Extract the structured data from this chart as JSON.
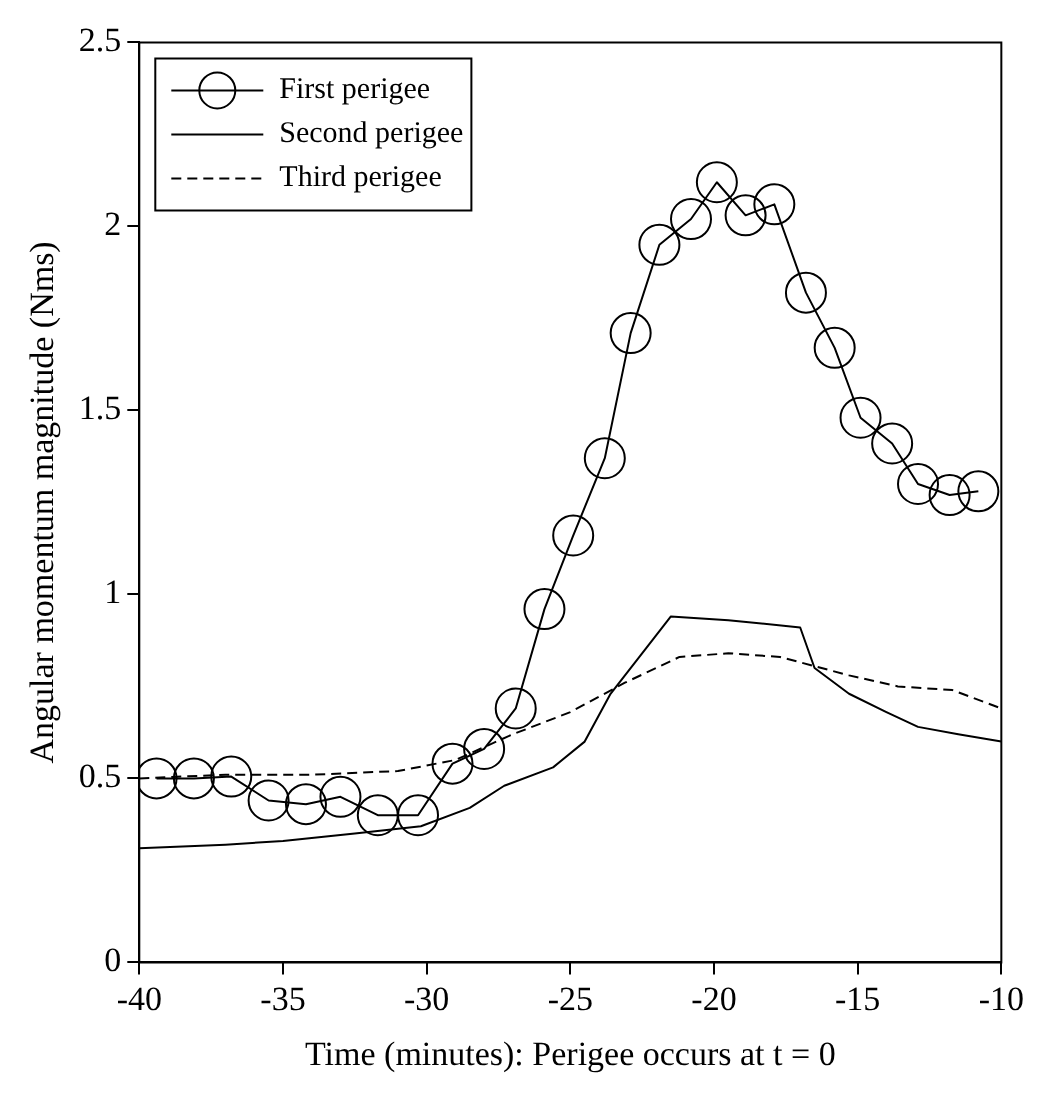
{
  "chart_data": {
    "type": "line",
    "xlabel": "Time (minutes): Perigee occurs at t = 0",
    "ylabel": "Angular momentum magnitude (Nms)",
    "xlim": [
      -40,
      -10
    ],
    "xticks": [
      -40,
      -35,
      -30,
      -25,
      -20,
      -15,
      -10
    ],
    "ylim": [
      0,
      2.5
    ],
    "yticks": [
      0,
      0.5,
      1,
      1.5,
      2,
      2.5
    ],
    "grid": false,
    "legend": "top left",
    "series": [
      {
        "name": "First perigee",
        "color": "#000000",
        "marker": "circle",
        "line_style": "solid",
        "x": [
          -39.4,
          -38.1,
          -36.8,
          -35.5,
          -34.2,
          -33.0,
          -31.7,
          -30.3,
          -29.1,
          -28.0,
          -26.9,
          -25.9,
          -24.9,
          -23.8,
          -22.9,
          -21.9,
          -20.8,
          -19.9,
          -18.9,
          -17.9,
          -16.8,
          -15.8,
          -14.9,
          -13.8,
          -12.9,
          -11.8,
          -10.8
        ],
        "values": [
          0.5,
          0.5,
          0.505,
          0.44,
          0.43,
          0.45,
          0.4,
          0.4,
          0.54,
          0.58,
          0.69,
          0.96,
          1.16,
          1.37,
          1.71,
          1.95,
          2.02,
          2.12,
          2.03,
          2.06,
          1.82,
          1.67,
          1.48,
          1.41,
          1.3,
          1.27,
          1.28
        ]
      },
      {
        "name": "Second perigee",
        "color": "#000000",
        "marker": "none",
        "line_style": "solid",
        "x": [
          -40,
          -37,
          -35,
          -32.5,
          -30.2,
          -28.5,
          -27.3,
          -25.6,
          -24.5,
          -23.6,
          -22.4,
          -21.5,
          -19.5,
          -17,
          -16.5,
          -15.3,
          -14,
          -12.9,
          -11.5,
          -10
        ],
        "values": [
          0.31,
          0.32,
          0.33,
          0.35,
          0.37,
          0.42,
          0.48,
          0.53,
          0.6,
          0.73,
          0.85,
          0.94,
          0.93,
          0.91,
          0.8,
          0.73,
          0.68,
          0.64,
          0.62,
          0.6
        ]
      },
      {
        "name": "Third perigee",
        "color": "#000000",
        "marker": "none",
        "line_style": "dashed",
        "x": [
          -40,
          -37,
          -34,
          -31,
          -29,
          -27,
          -25,
          -23.1,
          -21.2,
          -19.5,
          -17.7,
          -15.3,
          -13.6,
          -11.7,
          -10
        ],
        "values": [
          0.5,
          0.51,
          0.51,
          0.52,
          0.55,
          0.62,
          0.68,
          0.76,
          0.83,
          0.84,
          0.83,
          0.78,
          0.75,
          0.74,
          0.69
        ]
      }
    ]
  }
}
